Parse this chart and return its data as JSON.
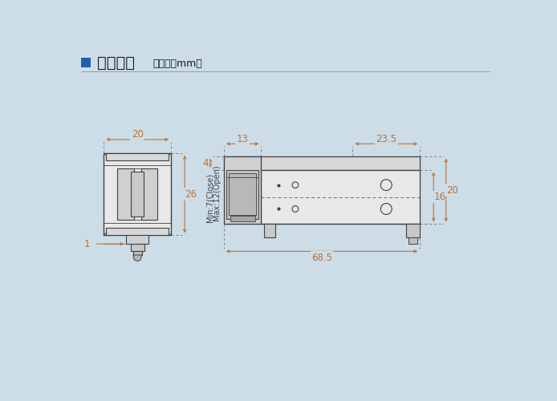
{
  "title": "外观尺寸",
  "subtitle": "（单位：mm）",
  "bg_color": "#ccdde8",
  "title_color": "#1a1a1a",
  "header_box_color": "#2060a8",
  "line_color": "#404040",
  "dim_color": "#c07030",
  "drawing_color": "#404040",
  "header_line_color": "#aaaaaa",
  "dims": {
    "front_width": "20",
    "front_height": "26",
    "front_tip": "1",
    "side_top_offset": "4",
    "side_body_width": "13",
    "side_total_length": "68.5",
    "side_right_width": "23.5",
    "side_height_inner": "16",
    "side_height_outer": "20",
    "gripper_open": "Max:12(Open)",
    "gripper_close": "Min:7(Close)"
  }
}
